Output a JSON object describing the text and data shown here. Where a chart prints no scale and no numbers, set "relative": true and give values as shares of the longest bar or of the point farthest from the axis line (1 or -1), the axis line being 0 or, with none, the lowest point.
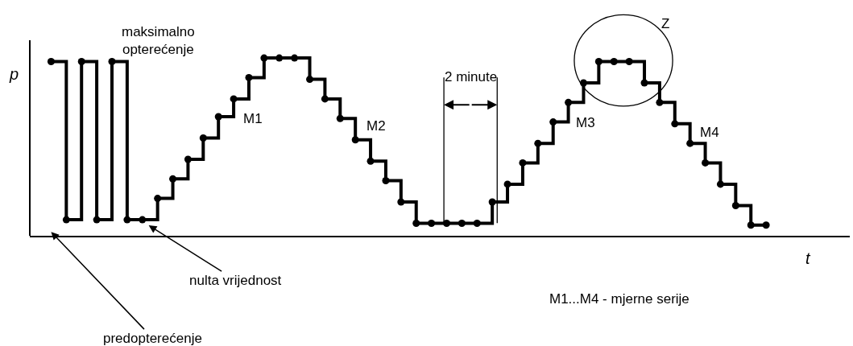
{
  "chart_data": {
    "type": "step",
    "relative": true,
    "xlabel": "t",
    "ylabel": "p",
    "marker": "circle",
    "line_style": "solid",
    "categories": [
      null,
      null,
      null,
      null,
      null,
      null,
      null,
      null,
      null,
      null,
      null,
      null,
      null,
      null,
      null,
      null,
      null,
      null,
      null,
      null,
      null,
      null,
      null,
      null,
      null,
      null,
      null,
      null,
      null,
      null,
      null,
      null,
      null,
      null,
      null,
      null,
      null,
      null,
      null,
      null,
      null,
      null,
      null,
      null,
      null,
      null,
      null,
      null
    ],
    "series": [
      {
        "color": "#000000",
        "values": [
          0.98,
          0.09,
          0.98,
          0.09,
          0.98,
          0.09,
          0.09,
          0.21,
          0.32,
          0.43,
          0.55,
          0.67,
          0.77,
          0.89,
          1.0,
          1.0,
          1.0,
          0.88,
          0.77,
          0.66,
          0.54,
          0.42,
          0.31,
          0.19,
          0.07,
          0.07,
          0.07,
          0.07,
          0.07,
          0.19,
          0.29,
          0.41,
          0.52,
          0.64,
          0.75,
          0.86,
          0.98,
          0.98,
          0.98,
          0.86,
          0.75,
          0.63,
          0.52,
          0.41,
          0.29,
          0.17,
          0.06,
          0.06
        ]
      }
    ],
    "annotations": [
      "maksimalno\nopterećenje",
      "M1",
      "M2",
      "M3",
      "M4",
      "Z",
      "nulta vrijednost",
      "predopterećenje",
      "2 minute",
      "M1...M4 - mjerne serije"
    ]
  }
}
